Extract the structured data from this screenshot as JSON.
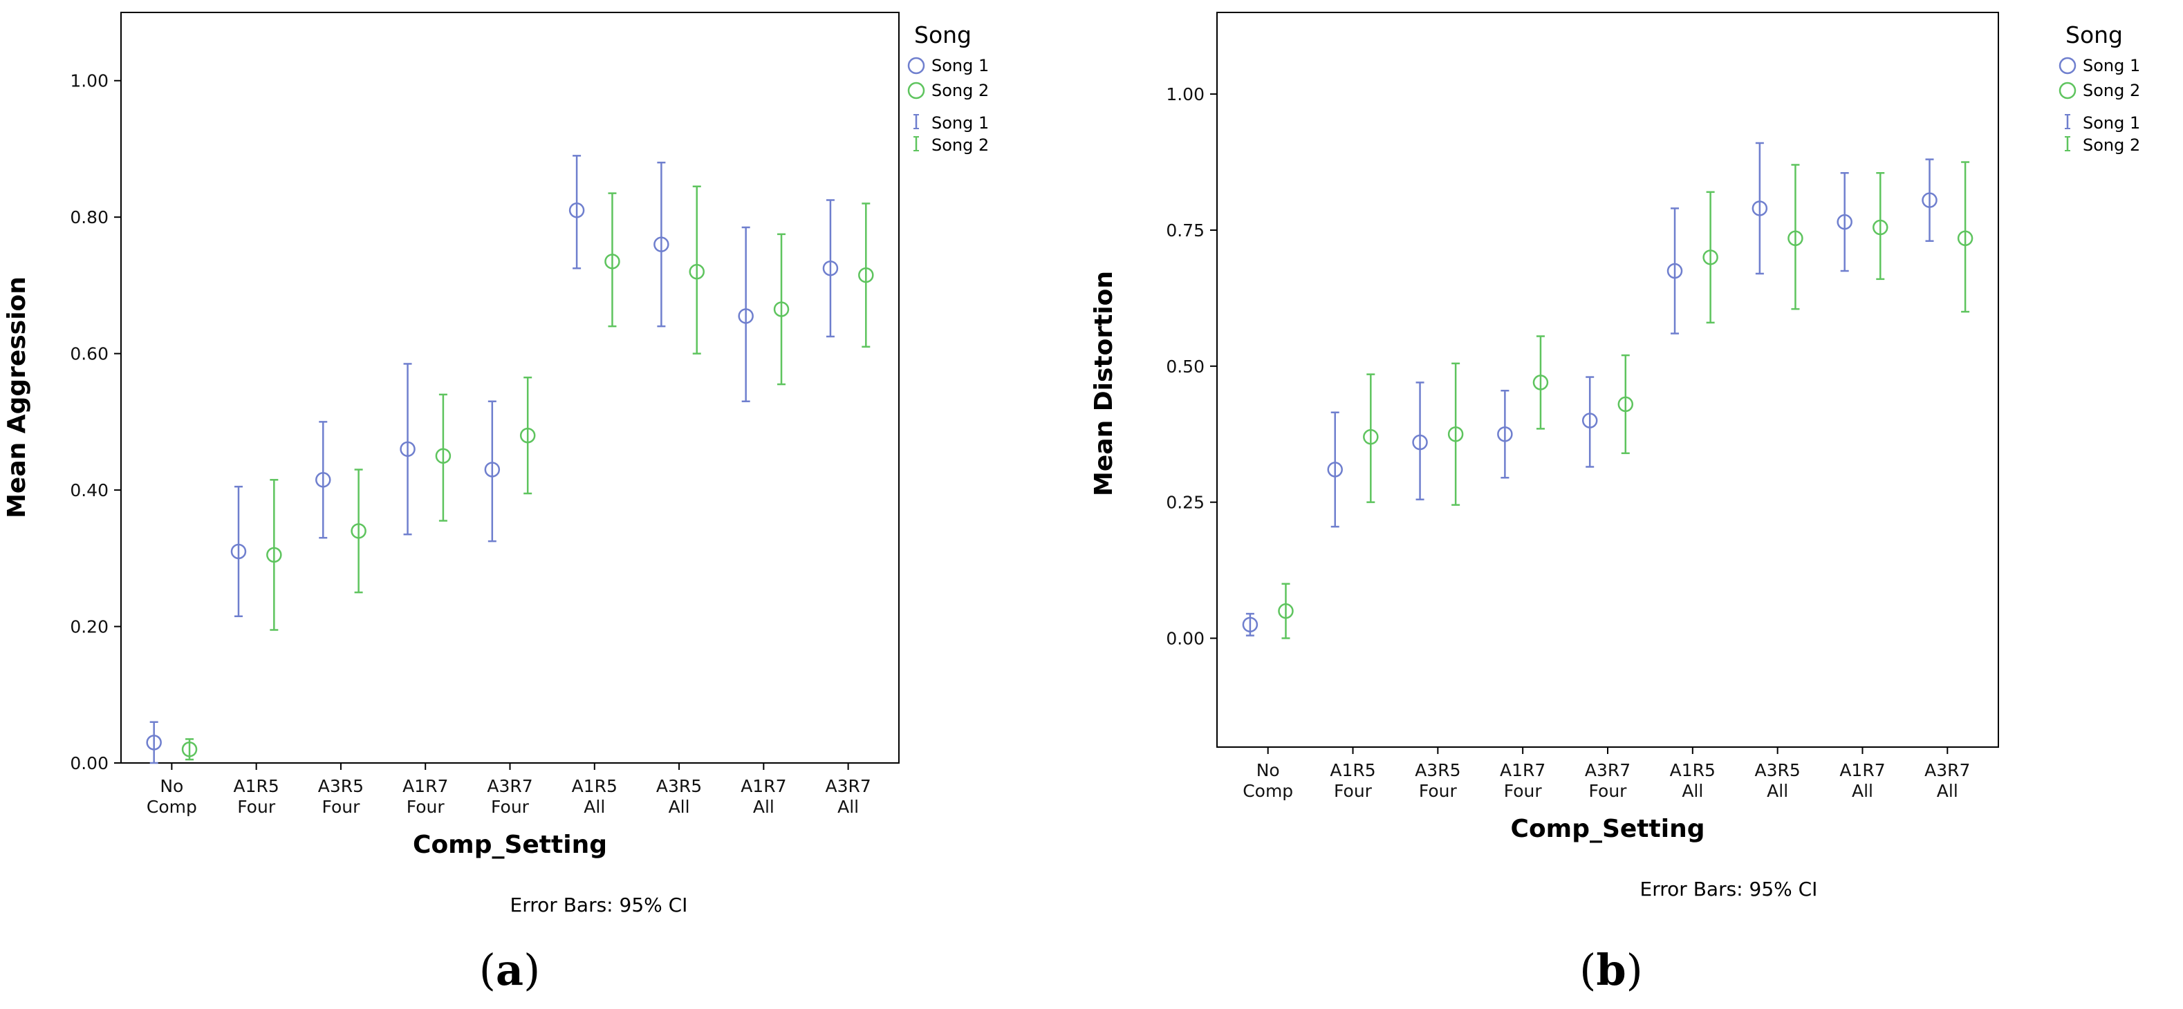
{
  "chart_data": [
    {
      "type": "scatter",
      "panel_label": "a",
      "xlabel": "Comp_Setting",
      "ylabel": "Mean Aggression",
      "ylim": [
        0,
        1.1
      ],
      "yticks": [
        0.0,
        0.2,
        0.4,
        0.6,
        0.8,
        1.0
      ],
      "ytick_labels": [
        "0.00",
        "0.20",
        "0.40",
        "0.60",
        "0.80",
        "1.00"
      ],
      "categories": [
        [
          "No",
          "Comp"
        ],
        [
          "A1R5",
          "Four"
        ],
        [
          "A3R5",
          "Four"
        ],
        [
          "A1R7",
          "Four"
        ],
        [
          "A3R7",
          "Four"
        ],
        [
          "A1R5",
          "All"
        ],
        [
          "A3R5",
          "All"
        ],
        [
          "A1R7",
          "All"
        ],
        [
          "A3R7",
          "All"
        ]
      ],
      "legend_title": "Song",
      "legend_position": "top-right outside",
      "note": "Error Bars: 95% CI",
      "series": [
        {
          "name": "Song 1",
          "color": "#6f7fce",
          "means": [
            0.03,
            0.31,
            0.415,
            0.46,
            0.43,
            0.81,
            0.76,
            0.655,
            0.725
          ],
          "ci_low": [
            0.0,
            0.215,
            0.33,
            0.335,
            0.325,
            0.725,
            0.64,
            0.53,
            0.625
          ],
          "ci_high": [
            0.06,
            0.405,
            0.5,
            0.585,
            0.53,
            0.89,
            0.88,
            0.785,
            0.825
          ]
        },
        {
          "name": "Song 2",
          "color": "#5ec45e",
          "means": [
            0.02,
            0.305,
            0.34,
            0.45,
            0.48,
            0.735,
            0.72,
            0.665,
            0.715
          ],
          "ci_low": [
            0.005,
            0.195,
            0.25,
            0.355,
            0.395,
            0.64,
            0.6,
            0.555,
            0.61
          ],
          "ci_high": [
            0.035,
            0.415,
            0.43,
            0.54,
            0.565,
            0.835,
            0.845,
            0.775,
            0.82
          ]
        }
      ]
    },
    {
      "type": "scatter",
      "panel_label": "b",
      "xlabel": "Comp_Setting",
      "ylabel": "Mean Distortion",
      "ylim": [
        -0.2,
        1.15
      ],
      "yticks": [
        0.0,
        0.25,
        0.5,
        0.75,
        1.0
      ],
      "ytick_labels": [
        "0.00",
        "0.25",
        "0.50",
        "0.75",
        "1.00"
      ],
      "categories": [
        [
          "No",
          "Comp"
        ],
        [
          "A1R5",
          "Four"
        ],
        [
          "A3R5",
          "Four"
        ],
        [
          "A1R7",
          "Four"
        ],
        [
          "A3R7",
          "Four"
        ],
        [
          "A1R5",
          "All"
        ],
        [
          "A3R5",
          "All"
        ],
        [
          "A1R7",
          "All"
        ],
        [
          "A3R7",
          "All"
        ]
      ],
      "legend_title": "Song",
      "legend_position": "top-right outside",
      "note": "Error Bars: 95% CI",
      "series": [
        {
          "name": "Song 1",
          "color": "#6f7fce",
          "means": [
            0.025,
            0.31,
            0.36,
            0.375,
            0.4,
            0.675,
            0.79,
            0.765,
            0.805
          ],
          "ci_low": [
            0.005,
            0.205,
            0.255,
            0.295,
            0.315,
            0.56,
            0.67,
            0.675,
            0.73
          ],
          "ci_high": [
            0.045,
            0.415,
            0.47,
            0.455,
            0.48,
            0.79,
            0.91,
            0.855,
            0.88
          ]
        },
        {
          "name": "Song 2",
          "color": "#5ec45e",
          "means": [
            0.05,
            0.37,
            0.375,
            0.47,
            0.43,
            0.7,
            0.735,
            0.755,
            0.735
          ],
          "ci_low": [
            0.0,
            0.25,
            0.245,
            0.385,
            0.34,
            0.58,
            0.605,
            0.66,
            0.6
          ],
          "ci_high": [
            0.1,
            0.485,
            0.505,
            0.555,
            0.52,
            0.82,
            0.87,
            0.855,
            0.875
          ]
        }
      ]
    }
  ]
}
